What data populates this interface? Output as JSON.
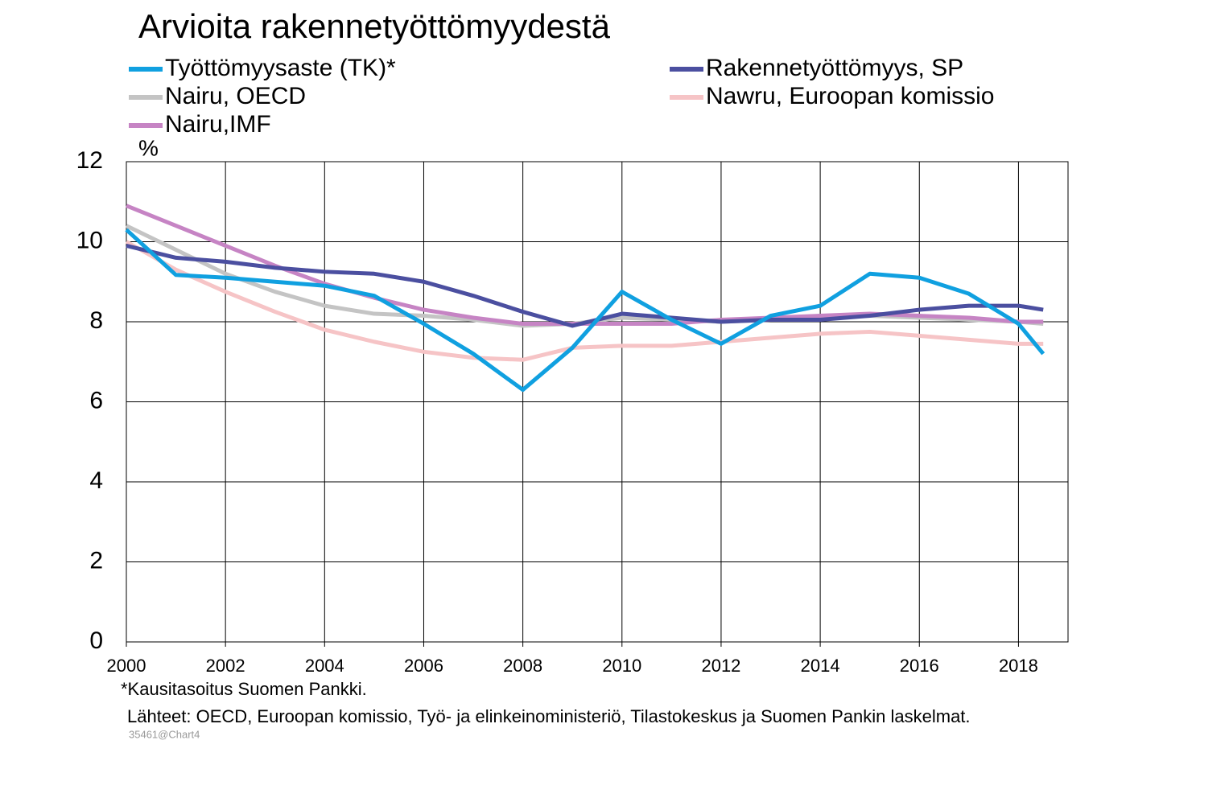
{
  "chart_data": {
    "type": "line",
    "title": "Arvioita rakennetyöttömyydestä",
    "y_unit": "%",
    "notes": [
      "*Kausitasoitus Suomen Pankki.",
      "Lähteet: OECD, Euroopan komissio, Työ- ja elinkeinoministeriö, Tilastokeskus ja Suomen Pankin laskelmat."
    ],
    "chart_id": "35461@Chart4",
    "x": [
      2000,
      2001,
      2002,
      2003,
      2004,
      2005,
      2006,
      2007,
      2008,
      2009,
      2010,
      2011,
      2012,
      2013,
      2014,
      2015,
      2016,
      2017,
      2018,
      2018.5
    ],
    "xlim": [
      2000,
      2019
    ],
    "xticks": [
      2000,
      2002,
      2004,
      2006,
      2008,
      2010,
      2012,
      2014,
      2016,
      2018
    ],
    "ylim": [
      0,
      12
    ],
    "yticks": [
      0,
      2,
      4,
      6,
      8,
      10,
      12
    ],
    "grid": true,
    "legend": "top",
    "series": [
      {
        "name": "Työttömyysaste (TK)*",
        "color": "#10a0e0",
        "values": [
          10.3,
          9.17,
          9.1,
          9.0,
          8.9,
          8.65,
          7.95,
          7.2,
          6.3,
          7.35,
          8.75,
          8.05,
          7.45,
          8.15,
          8.4,
          9.2,
          9.1,
          8.7,
          7.95,
          7.2
        ]
      },
      {
        "name": "Rakennetyöttömyys, SP",
        "color": "#4b4fa0",
        "values": [
          9.9,
          9.6,
          9.5,
          9.35,
          9.25,
          9.2,
          9.0,
          8.65,
          8.25,
          7.9,
          8.2,
          8.1,
          8.0,
          8.05,
          8.05,
          8.15,
          8.3,
          8.4,
          8.4,
          8.3
        ]
      },
      {
        "name": "Nairu, OECD",
        "color": "#c4c4c4",
        "values": [
          10.4,
          9.8,
          9.2,
          8.75,
          8.4,
          8.2,
          8.15,
          8.05,
          7.9,
          7.95,
          8.1,
          8.05,
          8.0,
          8.05,
          8.1,
          8.15,
          8.1,
          8.05,
          8.0,
          7.95
        ]
      },
      {
        "name": "Nawru, Euroopan komissio",
        "color": "#f6c4c6",
        "values": [
          10.0,
          9.3,
          8.75,
          8.25,
          7.8,
          7.5,
          7.25,
          7.1,
          7.05,
          7.35,
          7.4,
          7.4,
          7.5,
          7.6,
          7.7,
          7.75,
          7.65,
          7.55,
          7.45,
          7.45
        ]
      },
      {
        "name": "Nairu,IMF",
        "color": "#c684c4",
        "values": [
          10.9,
          10.4,
          9.9,
          9.4,
          8.95,
          8.6,
          8.3,
          8.1,
          7.95,
          7.95,
          7.95,
          7.95,
          8.05,
          8.1,
          8.15,
          8.2,
          8.15,
          8.1,
          8.0,
          8.0
        ]
      }
    ]
  }
}
